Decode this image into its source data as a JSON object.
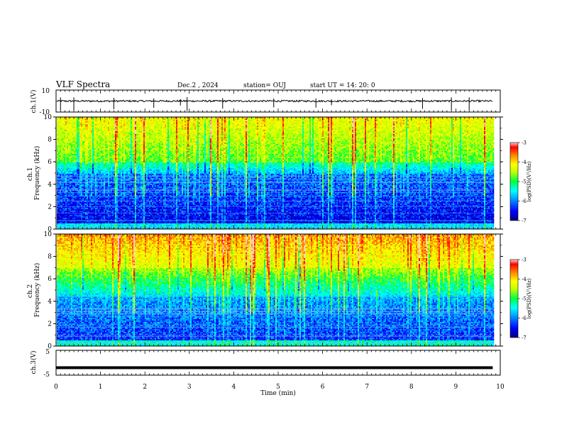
{
  "header": {
    "title": "VLF Spectra",
    "date": "Dec.2 , 2024",
    "station": "station= OUJ",
    "start": "start UT = 14: 20: 0"
  },
  "colorbar": {
    "label": "log(PSD)(V²/Hz)",
    "ticks": [
      "-3",
      "-4",
      "-5",
      "-6",
      "-7"
    ],
    "range": [
      -7,
      -3
    ],
    "colors": [
      "#000080",
      "#0000ff",
      "#00a0ff",
      "#00ffff",
      "#00ff40",
      "#c0ff00",
      "#ffff00",
      "#ff8000",
      "#ff0000",
      "#ffd0d0"
    ]
  },
  "chart_data": [
    {
      "type": "line",
      "panel": "ch1 waveform",
      "ylabel": "ch.1(V)",
      "ylim": [
        -10,
        10
      ],
      "yticks": [
        "10",
        "-10"
      ],
      "xlim": [
        0,
        10
      ],
      "baseline": 0,
      "spikes_min": [
        0.1,
        0.4,
        1.3,
        2.2,
        2.8,
        2.95,
        3.75,
        4.9,
        5.85,
        6.2,
        8.25,
        8.9,
        9.3
      ],
      "color": "#000000"
    },
    {
      "type": "heatmap",
      "panel": "ch1 spectrogram",
      "ylabel": "ch.1 Frequency (kHz)",
      "xlim": [
        0,
        9.83
      ],
      "ylim": [
        0,
        10
      ],
      "yticks": [
        "10",
        "8",
        "6",
        "4",
        "2",
        "0"
      ],
      "z_range": [
        -7,
        -3
      ],
      "background": "dark blue below 5 kHz, green/cyan above 5 kHz with red sferic streaks"
    },
    {
      "type": "heatmap",
      "panel": "ch2 spectrogram",
      "ylabel": "ch.2 Frequency (kHz)",
      "xlim": [
        0,
        9.83
      ],
      "ylim": [
        0,
        10
      ],
      "yticks": [
        "10",
        "8",
        "6",
        "4",
        "2",
        "0"
      ],
      "z_range": [
        -7,
        -3
      ],
      "background": "blue below 5 kHz, yellow/red above 7 kHz"
    },
    {
      "type": "line",
      "panel": "ch3 waveform",
      "ylabel": "ch.3(V)",
      "ylim": [
        -5,
        5
      ],
      "yticks": [
        "5",
        "-5"
      ],
      "xlim": [
        0,
        10
      ],
      "values_constant": -2,
      "color": "#000000"
    }
  ],
  "xaxis": {
    "label": "Time (min)",
    "ticks": [
      "0",
      "1",
      "2",
      "3",
      "4",
      "5",
      "6",
      "7",
      "8",
      "9",
      "10"
    ],
    "range": [
      0,
      10
    ]
  }
}
